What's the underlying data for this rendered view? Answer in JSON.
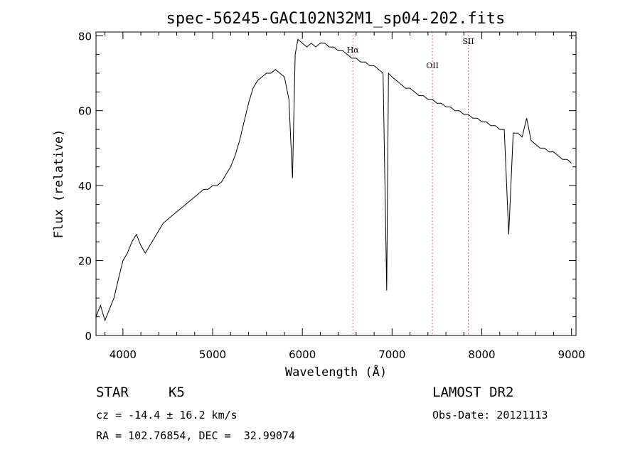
{
  "chart_data": {
    "type": "line",
    "title": "spec-56245-GAC102N32M1_sp04-202.fits",
    "xlabel": "Wavelength (Å)",
    "ylabel": "Flux (relative)",
    "xlim": [
      3700,
      9050
    ],
    "ylim": [
      0,
      81
    ],
    "x_ticks": [
      4000,
      5000,
      6000,
      7000,
      8000,
      9000
    ],
    "y_ticks": [
      0,
      20,
      40,
      60,
      80
    ],
    "grid": false,
    "series": [
      {
        "line_color": "#000000",
        "x": [
          3700,
          3750,
          3800,
          3850,
          3900,
          3950,
          4000,
          4050,
          4100,
          4150,
          4200,
          4250,
          4300,
          4350,
          4400,
          4450,
          4500,
          4550,
          4600,
          4650,
          4700,
          4750,
          4800,
          4850,
          4900,
          4950,
          5000,
          5050,
          5100,
          5150,
          5200,
          5250,
          5300,
          5350,
          5400,
          5450,
          5500,
          5550,
          5600,
          5650,
          5700,
          5750,
          5800,
          5850,
          5890,
          5920,
          5950,
          6000,
          6050,
          6100,
          6150,
          6200,
          6250,
          6300,
          6350,
          6400,
          6450,
          6500,
          6550,
          6600,
          6650,
          6700,
          6750,
          6800,
          6850,
          6900,
          6940,
          6960,
          7000,
          7050,
          7100,
          7150,
          7200,
          7250,
          7300,
          7350,
          7400,
          7450,
          7500,
          7550,
          7600,
          7650,
          7700,
          7750,
          7800,
          7850,
          7900,
          7950,
          8000,
          8050,
          8100,
          8150,
          8200,
          8250,
          8300,
          8350,
          8400,
          8450,
          8500,
          8550,
          8600,
          8650,
          8700,
          8750,
          8800,
          8850,
          8900,
          8950,
          9000
        ],
        "y": [
          5,
          8,
          4,
          7,
          10,
          15,
          20,
          22,
          25,
          27,
          24,
          22,
          24,
          26,
          28,
          30,
          31,
          32,
          33,
          34,
          35,
          36,
          37,
          38,
          39,
          39,
          40,
          40,
          41,
          43,
          45,
          48,
          52,
          57,
          62,
          66,
          68,
          69,
          70,
          70,
          71,
          70,
          69,
          63,
          42,
          75,
          79,
          78,
          77,
          78,
          77,
          78,
          78,
          77,
          77,
          76,
          76,
          75,
          74,
          74,
          73,
          73,
          72,
          72,
          71,
          70,
          12,
          70,
          69,
          68,
          67,
          66,
          66,
          65,
          64,
          64,
          63,
          63,
          62,
          62,
          61,
          61,
          60,
          60,
          59,
          59,
          58,
          58,
          57,
          57,
          56,
          56,
          55,
          55,
          27,
          54,
          54,
          53,
          58,
          52,
          51,
          50,
          50,
          49,
          49,
          48,
          47,
          47,
          46
        ]
      }
    ],
    "emission_lines": [
      {
        "label": "Hα",
        "x": 6563
      },
      {
        "label": "OII",
        "x": 7450
      },
      {
        "label": "SII",
        "x": 7850
      }
    ]
  },
  "info": {
    "class_label": "STAR",
    "subclass": "K5",
    "survey": "LAMOST DR2",
    "redshift": "cz = -14.4 ± 16.2 km/s",
    "obs_date": "Obs-Date: 20121113",
    "coords": "RA = 102.76854, DEC =  32.99074"
  }
}
